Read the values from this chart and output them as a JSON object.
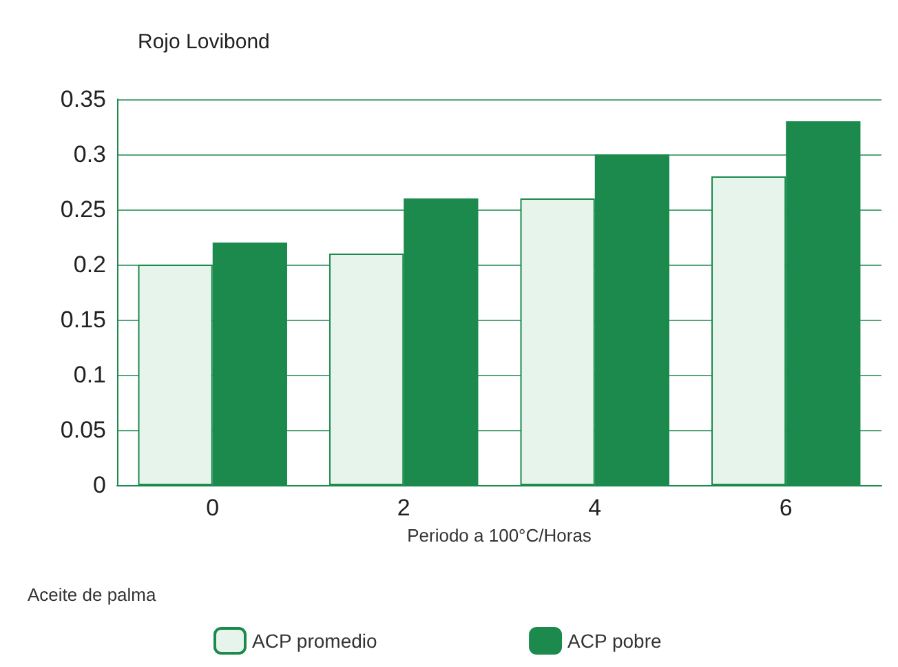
{
  "chart_data": {
    "type": "bar",
    "title": "Rojo Lovibond",
    "xlabel": "Periodo a 100°C/Horas",
    "legend_title": "Aceite de palma",
    "categories": [
      "0",
      "2",
      "4",
      "6"
    ],
    "series": [
      {
        "name": "ACP promedio",
        "color": "#e6f4ec",
        "values": [
          0.2,
          0.21,
          0.26,
          0.28
        ]
      },
      {
        "name": "ACP pobre",
        "color": "#1b8a4c",
        "values": [
          0.22,
          0.26,
          0.3,
          0.33
        ]
      }
    ],
    "ylim": [
      0,
      0.35
    ],
    "yticks": [
      0,
      0.05,
      0.1,
      0.15,
      0.2,
      0.25,
      0.3,
      0.35
    ],
    "grid": "y",
    "legend": "bottom"
  }
}
